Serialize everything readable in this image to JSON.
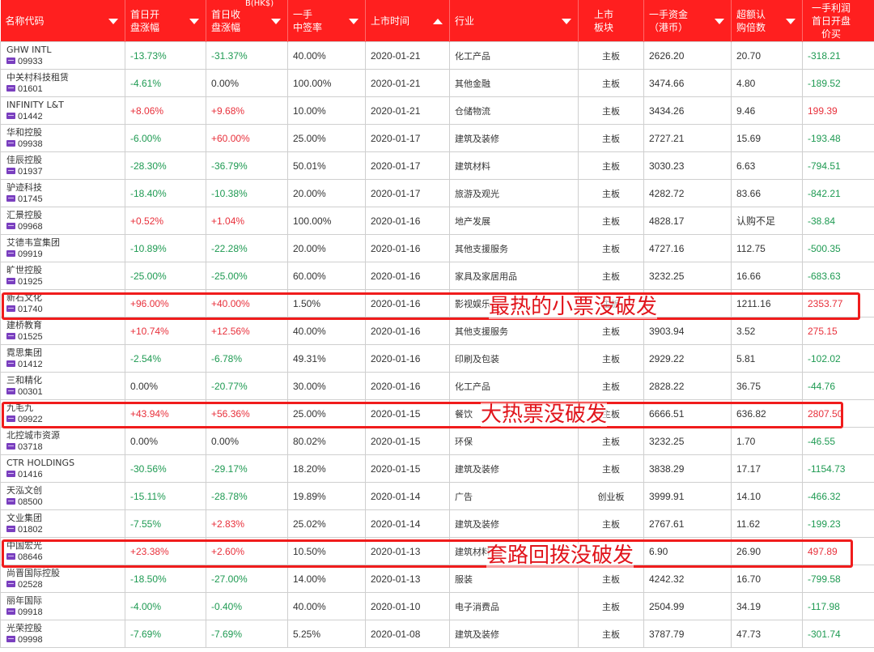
{
  "header": {
    "top_fragment": "B(HK$)",
    "columns": [
      {
        "label": "名称代码",
        "sort": "down"
      },
      {
        "label": "首日开\n盘涨幅",
        "sort": "down"
      },
      {
        "label": "首日收\n盘涨幅",
        "sort": "down"
      },
      {
        "label": "一手\n中签率",
        "sort": "down"
      },
      {
        "label": "上市时间",
        "sort": "up"
      },
      {
        "label": "行业",
        "sort": "down"
      },
      {
        "label": "上市\n板块",
        "sort": null
      },
      {
        "label": "一手资金\n（港币）",
        "sort": "down"
      },
      {
        "label": "超额认\n购倍数",
        "sort": "down"
      },
      {
        "label": "一手利润\n首日开盘价买",
        "sort": null
      }
    ]
  },
  "rows": [
    {
      "name": "GHW INTL",
      "code": "09933",
      "open": "-13.73%",
      "close": "-31.37%",
      "rate": "40.00%",
      "date": "2020-01-21",
      "industry": "化工产品",
      "board": "主板",
      "funds": "2626.20",
      "over": "20.70",
      "profit": "-318.21"
    },
    {
      "name": "中关村科技租赁",
      "code": "01601",
      "open": "-4.61%",
      "close": "0.00%",
      "rate": "100.00%",
      "date": "2020-01-21",
      "industry": "其他金融",
      "board": "主板",
      "funds": "3474.66",
      "over": "4.80",
      "profit": "-189.52"
    },
    {
      "name": "INFINITY L&T",
      "code": "01442",
      "open": "+8.06%",
      "close": "+9.68%",
      "rate": "10.00%",
      "date": "2020-01-21",
      "industry": "仓储物流",
      "board": "主板",
      "funds": "3434.26",
      "over": "9.46",
      "profit": "199.39"
    },
    {
      "name": "华和控股",
      "code": "09938",
      "open": "-6.00%",
      "close": "+60.00%",
      "rate": "25.00%",
      "date": "2020-01-17",
      "industry": "建筑及装修",
      "board": "主板",
      "funds": "2727.21",
      "over": "15.69",
      "profit": "-193.48"
    },
    {
      "name": "佳辰控股",
      "code": "01937",
      "open": "-28.30%",
      "close": "-36.79%",
      "rate": "50.01%",
      "date": "2020-01-17",
      "industry": "建筑材料",
      "board": "主板",
      "funds": "3030.23",
      "over": "6.63",
      "profit": "-794.51"
    },
    {
      "name": "驴迹科技",
      "code": "01745",
      "open": "-18.40%",
      "close": "-10.38%",
      "rate": "20.00%",
      "date": "2020-01-17",
      "industry": "旅游及观光",
      "board": "主板",
      "funds": "4282.72",
      "over": "83.66",
      "profit": "-842.21"
    },
    {
      "name": "汇景控股",
      "code": "09968",
      "open": "+0.52%",
      "close": "+1.04%",
      "rate": "100.00%",
      "date": "2020-01-16",
      "industry": "地产发展",
      "board": "主板",
      "funds": "4828.17",
      "over": "认购不足",
      "profit": "-38.84"
    },
    {
      "name": "艾德韦宣集团",
      "code": "09919",
      "open": "-10.89%",
      "close": "-22.28%",
      "rate": "20.00%",
      "date": "2020-01-16",
      "industry": "其他支援服务",
      "board": "主板",
      "funds": "4727.16",
      "over": "112.75",
      "profit": "-500.35"
    },
    {
      "name": "旷世控股",
      "code": "01925",
      "open": "-25.00%",
      "close": "-25.00%",
      "rate": "60.00%",
      "date": "2020-01-16",
      "industry": "家具及家居用品",
      "board": "主板",
      "funds": "3232.25",
      "over": "16.66",
      "profit": "-683.63"
    },
    {
      "name": "新石文化",
      "code": "01740",
      "open": "+96.00%",
      "close": "+40.00%",
      "rate": "1.50%",
      "date": "2020-01-16",
      "industry": "影视娱乐",
      "board": "主板",
      "funds": "",
      "over": "1211.16",
      "profit": "2353.77"
    },
    {
      "name": "建桥教育",
      "code": "01525",
      "open": "+10.74%",
      "close": "+12.56%",
      "rate": "40.00%",
      "date": "2020-01-16",
      "industry": "其他支援服务",
      "board": "主板",
      "funds": "3903.94",
      "over": "3.52",
      "profit": "275.15"
    },
    {
      "name": "霓思集团",
      "code": "01412",
      "open": "-2.54%",
      "close": "-6.78%",
      "rate": "49.31%",
      "date": "2020-01-16",
      "industry": "印刷及包装",
      "board": "主板",
      "funds": "2929.22",
      "over": "5.81",
      "profit": "-102.02"
    },
    {
      "name": "三和精化",
      "code": "00301",
      "open": "0.00%",
      "close": "-20.77%",
      "rate": "30.00%",
      "date": "2020-01-16",
      "industry": "化工产品",
      "board": "主板",
      "funds": "2828.22",
      "over": "36.75",
      "profit": "-44.76"
    },
    {
      "name": "九毛九",
      "code": "09922",
      "open": "+43.94%",
      "close": "+56.36%",
      "rate": "25.00%",
      "date": "2020-01-15",
      "industry": "餐饮",
      "board": "主板",
      "funds": "6666.51",
      "over": "636.82",
      "profit": "2807.50"
    },
    {
      "name": "北控城市资源",
      "code": "03718",
      "open": "0.00%",
      "close": "0.00%",
      "rate": "80.02%",
      "date": "2020-01-15",
      "industry": "环保",
      "board": "主板",
      "funds": "3232.25",
      "over": "1.70",
      "profit": "-46.55"
    },
    {
      "name": "CTR HOLDINGS",
      "code": "01416",
      "open": "-30.56%",
      "close": "-29.17%",
      "rate": "18.20%",
      "date": "2020-01-15",
      "industry": "建筑及装修",
      "board": "主板",
      "funds": "3838.29",
      "over": "17.17",
      "profit": "-1154.73"
    },
    {
      "name": "天泓文创",
      "code": "08500",
      "open": "-15.11%",
      "close": "-28.78%",
      "rate": "19.89%",
      "date": "2020-01-14",
      "industry": "广告",
      "board": "创业板",
      "funds": "3999.91",
      "over": "14.10",
      "profit": "-466.32"
    },
    {
      "name": "文业集团",
      "code": "01802",
      "open": "-7.55%",
      "close": "+2.83%",
      "rate": "25.02%",
      "date": "2020-01-14",
      "industry": "建筑及装修",
      "board": "主板",
      "funds": "2767.61",
      "over": "11.62",
      "profit": "-199.23"
    },
    {
      "name": "中国宏光",
      "code": "08646",
      "open": "+23.38%",
      "close": "+2.60%",
      "rate": "10.50%",
      "date": "2020-01-13",
      "industry": "建筑材料",
      "board": "",
      "funds": "6.90",
      "over": "26.90",
      "profit": "497.89"
    },
    {
      "name": "尚晋国际控股",
      "code": "02528",
      "open": "-18.50%",
      "close": "-27.00%",
      "rate": "14.00%",
      "date": "2020-01-13",
      "industry": "服装",
      "board": "主板",
      "funds": "4242.32",
      "over": "16.70",
      "profit": "-799.58"
    },
    {
      "name": "丽年国际",
      "code": "09918",
      "open": "-4.00%",
      "close": "-0.40%",
      "rate": "40.00%",
      "date": "2020-01-10",
      "industry": "电子消费品",
      "board": "主板",
      "funds": "2504.99",
      "over": "34.19",
      "profit": "-117.98"
    },
    {
      "name": "光荣控股",
      "code": "09998",
      "open": "-7.69%",
      "close": "-7.69%",
      "rate": "5.25%",
      "date": "2020-01-08",
      "industry": "建筑及装修",
      "board": "主板",
      "funds": "3787.79",
      "over": "47.73",
      "profit": "-301.74"
    }
  ],
  "annotations": [
    {
      "text": "最热的小票没破发"
    },
    {
      "text": "大热票没破发"
    },
    {
      "text": "套路回拨没破发"
    }
  ],
  "colors": {
    "header_bg": "#ff1f1f",
    "up": "#e8303b",
    "down": "#1e9a52",
    "box": "#f01c1c",
    "badge": "#7a3fbf"
  }
}
